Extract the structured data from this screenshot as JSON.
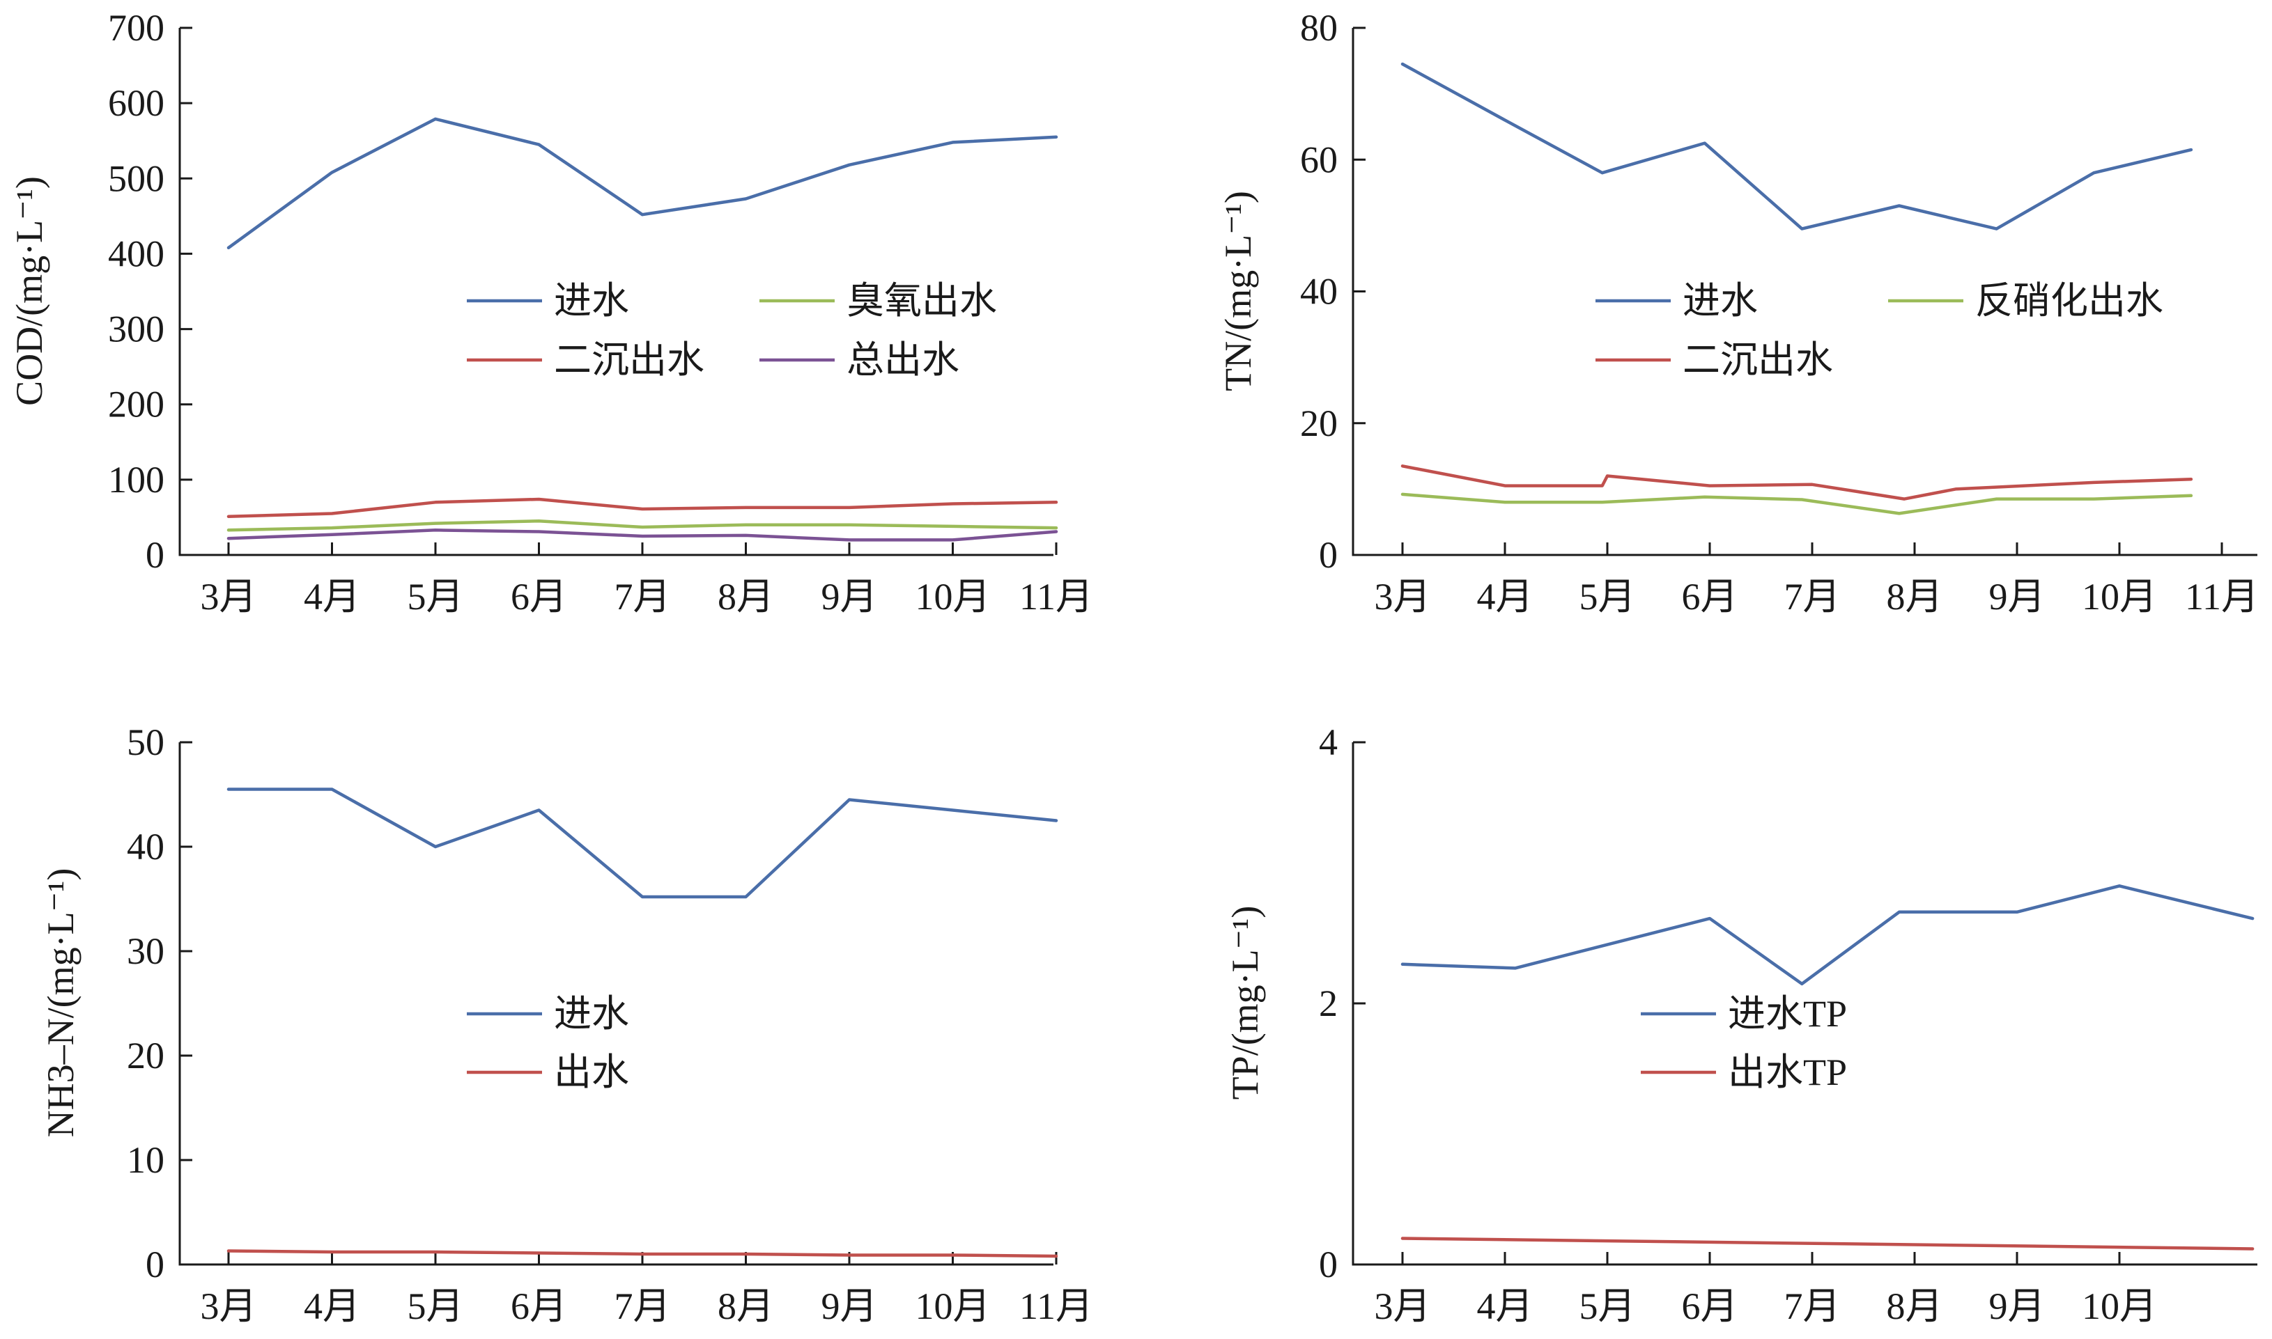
{
  "chart_data": [
    {
      "type": "line",
      "panel": "top-left",
      "ylabel": "COD/(mg·L⁻¹)",
      "ylim": [
        0,
        700
      ],
      "yticks": [
        0,
        100,
        200,
        300,
        400,
        500,
        600,
        700
      ],
      "categories": [
        "3月",
        "4月",
        "5月",
        "6月",
        "7月",
        "8月",
        "9月",
        "10月",
        "11月"
      ],
      "legend": {
        "placement": "center",
        "columns": 2
      },
      "series": [
        {
          "name": "进水",
          "color": "#4a6ea9",
          "x": [
            0,
            1,
            2,
            3,
            4,
            5,
            6,
            7,
            8
          ],
          "values": [
            408,
            508,
            579,
            545,
            452,
            473,
            518,
            548,
            555
          ]
        },
        {
          "name": "臭氧出水",
          "color": "#9bbb59",
          "x": [
            0,
            1,
            2,
            3,
            4,
            5,
            6,
            7,
            8
          ],
          "values": [
            33,
            36,
            42,
            45,
            37,
            40,
            40,
            38,
            36
          ]
        },
        {
          "name": "二沉出水",
          "color": "#c0504d",
          "x": [
            0,
            1,
            2,
            3,
            4,
            5,
            6,
            7,
            8
          ],
          "values": [
            51,
            55,
            70,
            74,
            61,
            63,
            63,
            68,
            70
          ]
        },
        {
          "name": "总出水",
          "color": "#7b5294",
          "x": [
            0,
            1,
            2,
            3,
            4,
            5,
            6,
            7,
            8
          ],
          "values": [
            22,
            27,
            33,
            31,
            25,
            26,
            20,
            20,
            31
          ]
        }
      ]
    },
    {
      "type": "line",
      "panel": "top-right",
      "ylabel": "TN/(mg·L⁻¹)",
      "ylim": [
        0,
        80
      ],
      "yticks": [
        0,
        20,
        40,
        60,
        80
      ],
      "categories": [
        "3月",
        "4月",
        "5月",
        "6月",
        "7月",
        "8月",
        "9月",
        "10月",
        "11月"
      ],
      "legend": {
        "placement": "center",
        "columns": 2
      },
      "series": [
        {
          "name": "进水",
          "color": "#4a6ea9",
          "x": [
            0,
            1,
            1.95,
            2.95,
            3.9,
            4.85,
            5.8,
            6.75,
            7.7
          ],
          "values": [
            74.5,
            66,
            58,
            62.5,
            49.5,
            53,
            49.5,
            58,
            61.5
          ]
        },
        {
          "name": "反硝化出水",
          "color": "#9bbb59",
          "x": [
            0,
            1,
            1.95,
            2.95,
            3.9,
            4.85,
            5.8,
            6.75,
            7.7
          ],
          "values": [
            9.2,
            8,
            8,
            8.8,
            8.4,
            6.3,
            8.5,
            8.5,
            9
          ]
        },
        {
          "name": "二沉出水",
          "color": "#c0504d",
          "x": [
            0,
            1,
            1.95,
            2,
            3,
            4,
            4.9,
            5.4,
            6.75,
            7.7
          ],
          "values": [
            13.5,
            10.5,
            10.5,
            12,
            10.5,
            10.7,
            8.5,
            10,
            11,
            11.5
          ]
        }
      ]
    },
    {
      "type": "line",
      "panel": "bottom-left",
      "ylabel": "NH3–N/(mg·L⁻¹)",
      "ylim": [
        0,
        50
      ],
      "yticks": [
        0,
        10,
        20,
        30,
        40,
        50
      ],
      "categories": [
        "3月",
        "4月",
        "5月",
        "6月",
        "7月",
        "8月",
        "9月",
        "10月",
        "11月"
      ],
      "legend": {
        "placement": "center",
        "columns": 1
      },
      "series": [
        {
          "name": "进水",
          "color": "#4a6ea9",
          "x": [
            0,
            1,
            2,
            3,
            4,
            5,
            6,
            7,
            8
          ],
          "values": [
            45.5,
            45.5,
            40,
            43.5,
            35.2,
            35.2,
            44.5,
            43.5,
            42.5
          ]
        },
        {
          "name": "出水",
          "color": "#c0504d",
          "x": [
            0,
            1,
            2,
            3,
            4,
            5,
            6,
            7,
            8
          ],
          "values": [
            1.3,
            1.2,
            1.2,
            1.1,
            1.0,
            1.0,
            0.9,
            0.9,
            0.8
          ]
        }
      ]
    },
    {
      "type": "line",
      "panel": "bottom-right",
      "ylabel": "TP/(mg·L⁻¹)",
      "ylim": [
        0,
        4
      ],
      "yticks": [
        0,
        2,
        4
      ],
      "categories": [
        "3月",
        "4月",
        "5月",
        "6月",
        "7月",
        "8月",
        "9月",
        "10月"
      ],
      "legend": {
        "placement": "center",
        "columns": 1
      },
      "series": [
        {
          "name": "进水TP",
          "color": "#4a6ea9",
          "x": [
            0,
            1.1,
            3,
            3.9,
            4.85,
            6,
            7,
            8.3
          ],
          "values": [
            2.3,
            2.27,
            2.65,
            2.15,
            2.7,
            2.7,
            2.9,
            2.65
          ]
        },
        {
          "name": "出水TP",
          "color": "#c0504d",
          "x": [
            0,
            8.3
          ],
          "values": [
            0.2,
            0.12
          ]
        }
      ]
    }
  ]
}
